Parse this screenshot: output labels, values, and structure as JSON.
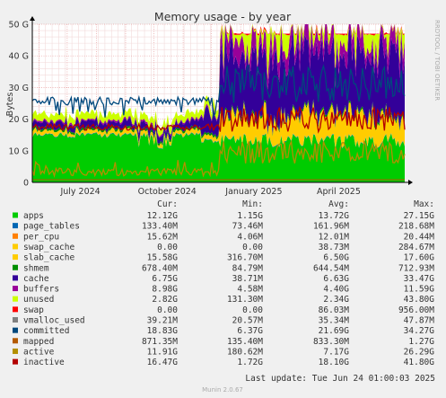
{
  "colors": {
    "apps": "#00cc00",
    "page_tables": "#0066b3",
    "per_cpu": "#ff8000",
    "swap_cache": "#ffcc00",
    "slab_cache": "#ffcc00",
    "shmem": "#008f00",
    "cache": "#330099",
    "buffers": "#990099",
    "unused": "#ccff00",
    "swap": "#ff0000",
    "vmalloc_used": "#808080",
    "committed": "#00487d",
    "mapped": "#b35a00",
    "active": "#b38f00",
    "inactive": "#b30000"
  },
  "chart_data": {
    "type": "area",
    "title": "Memory usage - by year",
    "ylabel": "Bytes",
    "side_label": "RRDTOOL / TOBI OETIKER",
    "yticks": [
      "0",
      "10 G",
      "20 G",
      "30 G",
      "40 G",
      "50 G"
    ],
    "ylim": [
      0,
      50
    ],
    "xticks": [
      "July 2024",
      "October 2024",
      "January 2025",
      "April 2025"
    ],
    "xlim": [
      "2024-05-25",
      "2025-06-24"
    ],
    "grid": true,
    "columns": {
      "cur": "Cur:",
      "min": "Min:",
      "avg": "Avg:",
      "max": "Max:"
    },
    "series": [
      {
        "name": "apps",
        "cur": "12.12G",
        "min": "1.15G",
        "avg": "13.72G",
        "max": "27.15G"
      },
      {
        "name": "page_tables",
        "cur": "133.40M",
        "min": "73.46M",
        "avg": "161.96M",
        "max": "218.68M"
      },
      {
        "name": "per_cpu",
        "cur": "15.62M",
        "min": "4.06M",
        "avg": "12.01M",
        "max": "20.44M"
      },
      {
        "name": "swap_cache",
        "cur": "0.00",
        "min": "0.00",
        "avg": "38.73M",
        "max": "284.67M"
      },
      {
        "name": "slab_cache",
        "cur": "15.58G",
        "min": "316.70M",
        "avg": "6.50G",
        "max": "17.60G"
      },
      {
        "name": "shmem",
        "cur": "678.40M",
        "min": "84.79M",
        "avg": "644.54M",
        "max": "712.93M"
      },
      {
        "name": "cache",
        "cur": "6.75G",
        "min": "38.71M",
        "avg": "6.63G",
        "max": "33.47G"
      },
      {
        "name": "buffers",
        "cur": "8.98G",
        "min": "4.58M",
        "avg": "4.40G",
        "max": "11.59G"
      },
      {
        "name": "unused",
        "cur": "2.82G",
        "min": "131.30M",
        "avg": "2.34G",
        "max": "43.80G"
      },
      {
        "name": "swap",
        "cur": "0.00",
        "min": "0.00",
        "avg": "86.03M",
        "max": "956.00M"
      },
      {
        "name": "vmalloc_used",
        "cur": "39.21M",
        "min": "20.57M",
        "avg": "35.34M",
        "max": "47.87M"
      },
      {
        "name": "committed",
        "cur": "18.83G",
        "min": "6.37G",
        "avg": "21.69G",
        "max": "34.27G"
      },
      {
        "name": "mapped",
        "cur": "871.35M",
        "min": "135.40M",
        "avg": "833.30M",
        "max": "1.27G"
      },
      {
        "name": "active",
        "cur": "11.91G",
        "min": "180.62M",
        "avg": "7.17G",
        "max": "26.29G"
      },
      {
        "name": "inactive",
        "cur": "16.47G",
        "min": "1.72G",
        "avg": "18.10G",
        "max": "41.80G"
      }
    ]
  },
  "footer": {
    "last_update": "Last update: Tue Jun 24 01:00:03 2025",
    "version": "Munin 2.0.67"
  }
}
